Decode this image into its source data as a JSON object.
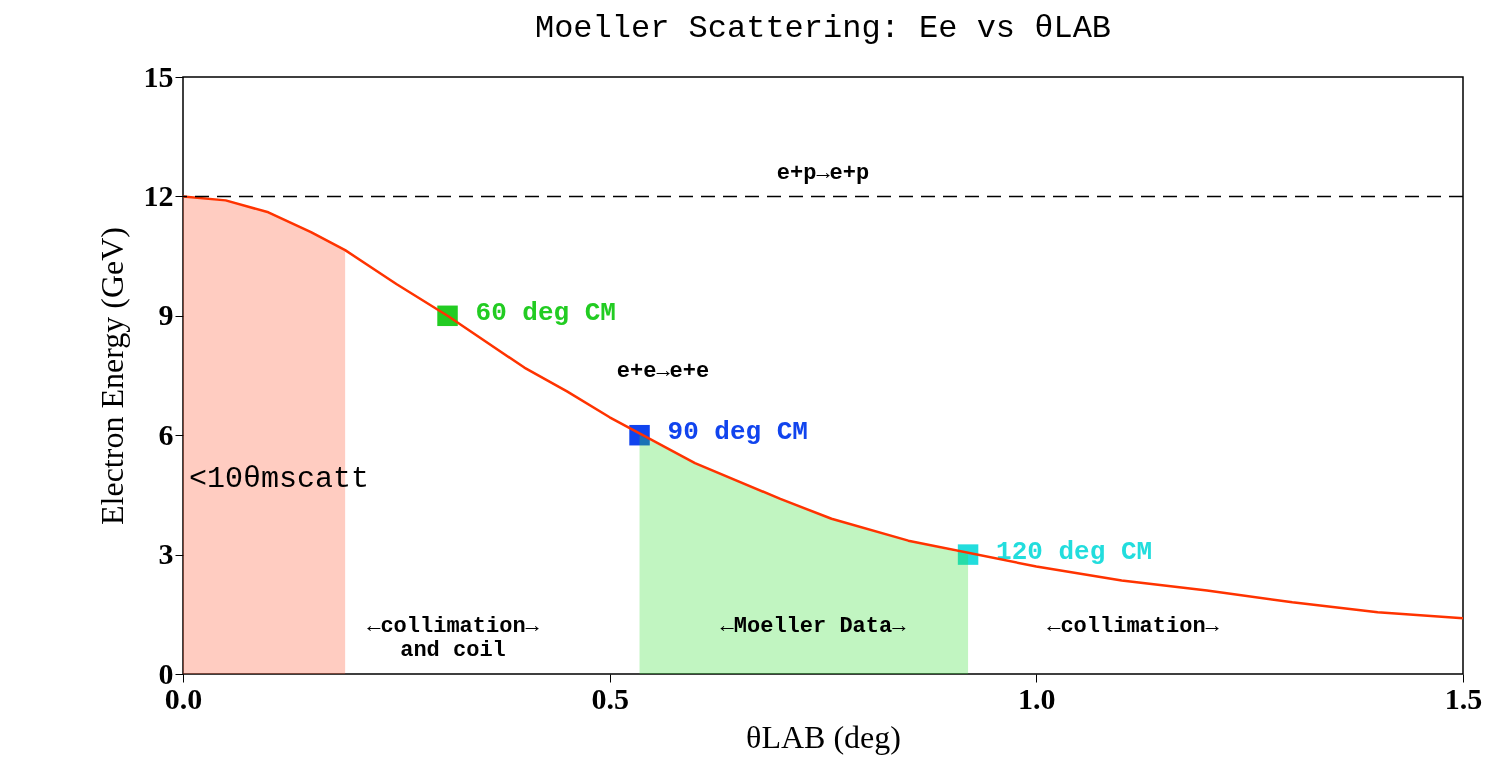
{
  "chart_data": {
    "type": "line",
    "title": "Moeller Scattering: Ee vs θLAB",
    "xlabel": "θLAB (deg)",
    "ylabel": "Electron Energy (GeV)",
    "xlim": [
      0,
      1.5
    ],
    "ylim": [
      0,
      15
    ],
    "xticks": [
      {
        "value": 0,
        "label": "0.0"
      },
      {
        "value": 0.5,
        "label": "0.5"
      },
      {
        "value": 1,
        "label": "1.0"
      },
      {
        "value": 1.5,
        "label": "1.5"
      }
    ],
    "yticks": [
      0,
      3,
      6,
      9,
      12,
      15
    ],
    "grid": false,
    "series": [
      {
        "type": "area",
        "color": "#ff5533",
        "x": [
          0,
          0.05,
          0.1,
          0.15,
          0.19
        ],
        "values": [
          12.0,
          11.9,
          11.6,
          11.1,
          10.65
        ]
      },
      {
        "type": "area",
        "color": "#33dd33",
        "x": [
          0.535,
          0.6,
          0.7,
          0.76,
          0.85,
          0.92
        ],
        "values": [
          6.0,
          5.3,
          4.4,
          3.9,
          3.35,
          3.0
        ]
      },
      {
        "color": "#ff3300",
        "x": [
          0,
          0.05,
          0.1,
          0.15,
          0.19,
          0.25,
          0.31,
          0.4,
          0.45,
          0.5,
          0.6,
          0.7,
          0.76,
          0.85,
          1.0,
          1.1,
          1.2,
          1.3,
          1.4,
          1.5
        ],
        "values": [
          12.0,
          11.9,
          11.6,
          11.1,
          10.65,
          9.8,
          9.0,
          7.7,
          7.1,
          6.45,
          5.3,
          4.4,
          3.9,
          3.35,
          2.7,
          2.35,
          2.1,
          1.8,
          1.55,
          1.4
        ]
      },
      {
        "type": "scatter",
        "marker": "square",
        "name": "60 deg CM",
        "color": "#22cc22",
        "x": [
          0.31
        ],
        "values": [
          9.0
        ]
      },
      {
        "type": "scatter",
        "marker": "square",
        "name": "90 deg CM",
        "color": "#1144ee",
        "x": [
          0.535
        ],
        "values": [
          6.0
        ]
      },
      {
        "type": "scatter",
        "marker": "square",
        "name": "120 deg CM",
        "color": "#22dddd",
        "x": [
          0.92
        ],
        "values": [
          3.0
        ]
      }
    ],
    "ref_lines": [
      {
        "axis": "y",
        "value": 12,
        "label": "e+p→e+p",
        "line_style": "dashed",
        "color": "#000000"
      }
    ],
    "annotations": [
      "e+e→e+e",
      "<10θmscatt",
      "←collimation→\nand coil",
      "←Moeller Data→",
      "←collimation→"
    ]
  }
}
